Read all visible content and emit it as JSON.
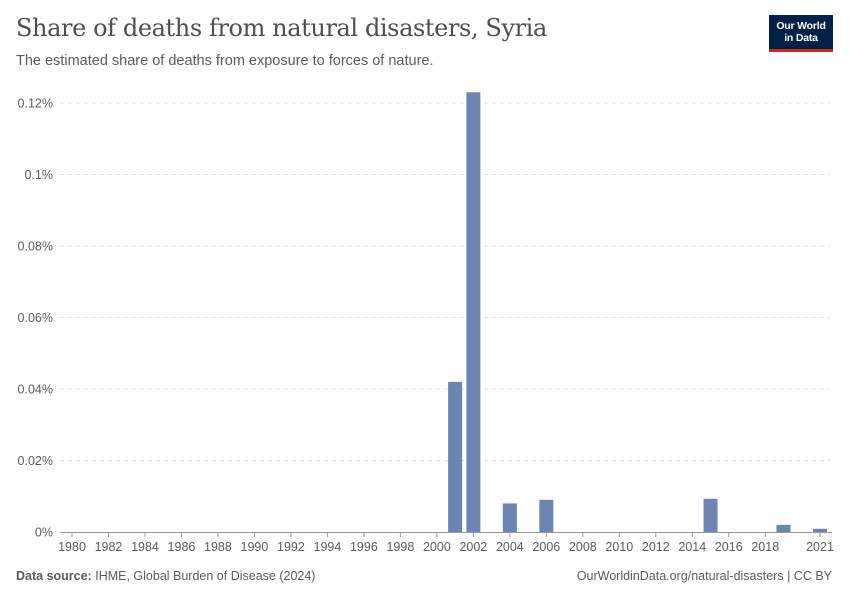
{
  "header": {
    "title": "Share of deaths from natural disasters, Syria",
    "subtitle": "The estimated share of deaths from exposure to forces of nature."
  },
  "logo": {
    "line1": "Our World",
    "line2": "in Data"
  },
  "footer": {
    "source_label": "Data source:",
    "source_text": "IHME, Global Burden of Disease (2024)",
    "url_text": "OurWorldinData.org/natural-disasters | CC BY"
  },
  "colors": {
    "bar": "#6d85b2",
    "grid": "#dddddd",
    "axis": "#999999"
  },
  "chart_data": {
    "type": "bar",
    "title": "Share of deaths from natural disasters, Syria",
    "xlabel": "",
    "ylabel": "",
    "ylim": [
      0,
      0.12
    ],
    "yticks": [
      0,
      0.02,
      0.04,
      0.06,
      0.08,
      0.1,
      0.12
    ],
    "ytick_labels": [
      "0%",
      "0.02%",
      "0.04%",
      "0.06%",
      "0.08%",
      "0.1%",
      "0.12%"
    ],
    "xlim": [
      1980,
      2021
    ],
    "xticks": [
      1980,
      1982,
      1984,
      1986,
      1988,
      1990,
      1992,
      1994,
      1996,
      1998,
      2000,
      2002,
      2004,
      2006,
      2008,
      2010,
      2012,
      2014,
      2016,
      2018,
      2021
    ],
    "grid": true,
    "legend": "none",
    "x": [
      1980,
      1981,
      1982,
      1983,
      1984,
      1985,
      1986,
      1987,
      1988,
      1989,
      1990,
      1991,
      1992,
      1993,
      1994,
      1995,
      1996,
      1997,
      1998,
      1999,
      2000,
      2001,
      2002,
      2003,
      2004,
      2005,
      2006,
      2007,
      2008,
      2009,
      2010,
      2011,
      2012,
      2013,
      2014,
      2015,
      2016,
      2017,
      2018,
      2019,
      2020,
      2021
    ],
    "values": [
      0,
      0,
      0,
      0,
      0,
      0,
      0,
      0,
      0,
      0,
      0,
      0,
      0,
      0,
      0,
      0,
      0,
      0,
      0,
      0,
      0,
      0.042,
      0.123,
      0,
      0.008,
      0,
      0.009,
      0,
      0,
      0,
      0,
      0,
      0,
      0,
      0,
      0.0093,
      0,
      0,
      0,
      0.002,
      0,
      0.0009
    ],
    "unit": "%"
  }
}
